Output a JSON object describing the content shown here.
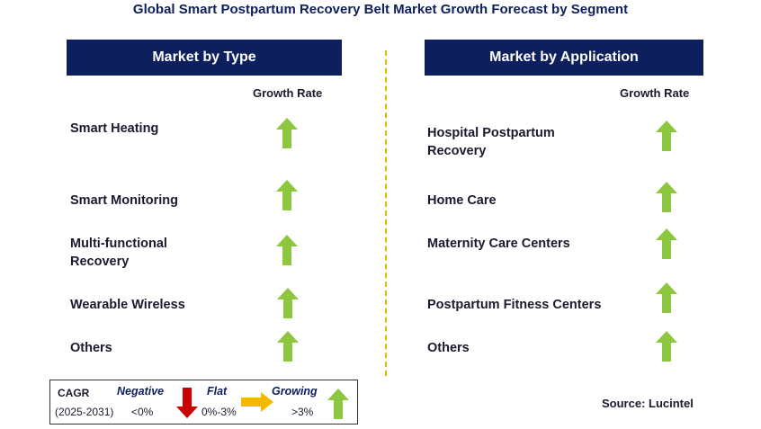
{
  "title": "Global Smart Postpartum Recovery Belt Market Growth Forecast by Segment",
  "left_panel": {
    "header": "Market by Type",
    "growth_label": "Growth Rate",
    "rows": [
      {
        "label": "Smart Heating",
        "trend": "growing"
      },
      {
        "label": "Smart Monitoring",
        "trend": "growing"
      },
      {
        "label": "Multi-functional Recovery",
        "trend": "growing"
      },
      {
        "label": "Wearable Wireless",
        "trend": "growing"
      },
      {
        "label": "Others",
        "trend": "growing"
      }
    ]
  },
  "right_panel": {
    "header": "Market by Application",
    "growth_label": "Growth Rate",
    "rows": [
      {
        "label": "Hospital Postpartum Recovery",
        "trend": "growing"
      },
      {
        "label": "Home Care",
        "trend": "growing"
      },
      {
        "label": "Maternity Care Centers",
        "trend": "growing"
      },
      {
        "label": "Postpartum Fitness Centers",
        "trend": "growing"
      },
      {
        "label": "Others",
        "trend": "growing"
      }
    ]
  },
  "legend": {
    "cagr_label": "CAGR",
    "period": "(2025-2031)",
    "negative": {
      "label": "Negative",
      "range": "<0%",
      "icon": "down-arrow-icon",
      "color": "#cc0000"
    },
    "flat": {
      "label": "Flat",
      "range": "0%-3%",
      "icon": "right-arrow-icon",
      "color": "#f5b800"
    },
    "growing": {
      "label": "Growing",
      "range": ">3%",
      "icon": "up-arrow-icon",
      "color": "#8dc63f"
    }
  },
  "source": "Source: Lucintel",
  "colors": {
    "header_bg": "#0d1f5c",
    "divider": "#f0b400",
    "growth_arrow": "#8dc63f"
  }
}
